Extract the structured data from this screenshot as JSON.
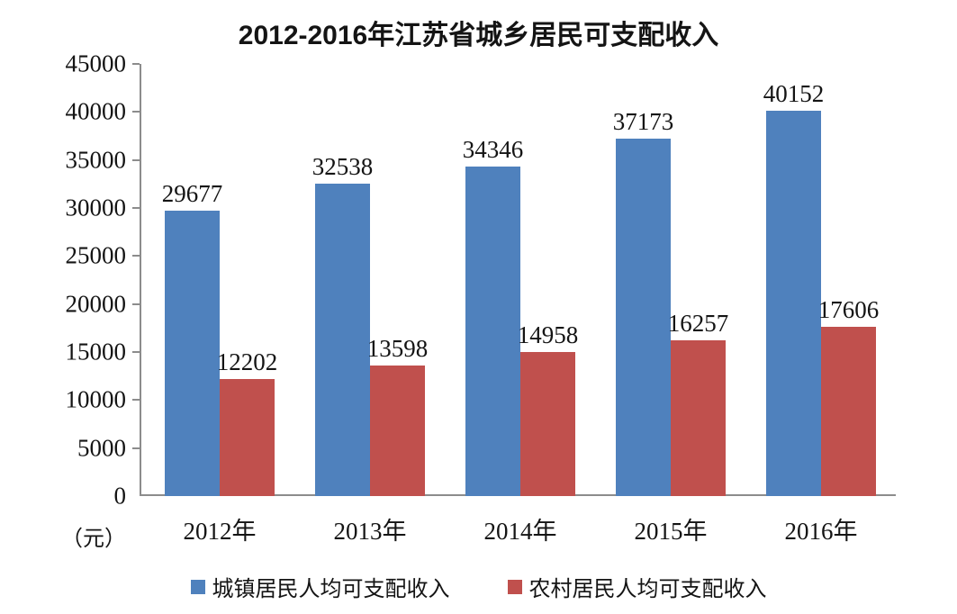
{
  "title": "2012-2016年江苏省城乡居民可支配收入",
  "unit_label": "（元）",
  "colors": {
    "urban_blue": "#4F81BD",
    "rural_red": "#C0504D",
    "axis_gray": "#8C8C8C",
    "text": "#141414"
  },
  "chart_data": {
    "type": "bar",
    "title": "2012-2016年江苏省城乡居民可支配收入",
    "categories": [
      "2012年",
      "2013年",
      "2014年",
      "2015年",
      "2016年"
    ],
    "series": [
      {
        "name": "城镇居民人均可支配收入",
        "color": "#4F81BD",
        "values": [
          29677,
          32538,
          34346,
          37173,
          40152
        ]
      },
      {
        "name": "农村居民人均可支配收入",
        "color": "#C0504D",
        "values": [
          12202,
          13598,
          14958,
          16257,
          17606
        ]
      }
    ],
    "xlabel": "",
    "ylabel": "（元）",
    "ylim": [
      0,
      45000
    ],
    "yticks": [
      0,
      5000,
      10000,
      15000,
      20000,
      25000,
      30000,
      35000,
      40000,
      45000
    ],
    "grid": false,
    "legend_position": "bottom",
    "data_labels": true
  }
}
